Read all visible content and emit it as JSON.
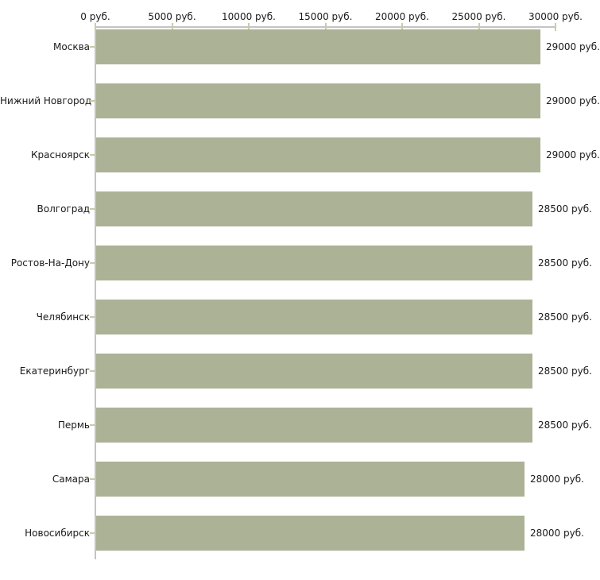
{
  "chart_data": {
    "type": "bar",
    "orientation": "horizontal",
    "title": "",
    "xlabel": "",
    "ylabel": "",
    "unit": "руб.",
    "xlim": [
      0,
      30000
    ],
    "grid": false,
    "legend": "none",
    "categories": [
      "Москва",
      "Нижний Новгород",
      "Красноярск",
      "Волгоград",
      "Ростов-На-Дону",
      "Челябинск",
      "Екатеринбург",
      "Пермь",
      "Самара",
      "Новосибирск"
    ],
    "values": [
      29000,
      29000,
      29000,
      28500,
      28500,
      28500,
      28500,
      28500,
      28000,
      28000
    ],
    "value_labels": [
      "29000 руб.",
      "29000 руб.",
      "29000 руб.",
      "28500 руб.",
      "28500 руб.",
      "28500 руб.",
      "28500 руб.",
      "28500 руб.",
      "28000 руб.",
      "28000 руб."
    ],
    "x_tick_values": [
      0,
      5000,
      10000,
      15000,
      20000,
      25000,
      30000
    ],
    "x_tick_labels": [
      "0 руб.",
      "5000 руб.",
      "10000 руб.",
      "15000 руб.",
      "20000 руб.",
      "25000 руб.",
      "30000 руб."
    ],
    "colors": {
      "bar": "#acb296",
      "axis_line": "#c4c4c4",
      "tick": "#cbcba2",
      "text": "#1a1a1a",
      "background": "#ffffff"
    }
  }
}
